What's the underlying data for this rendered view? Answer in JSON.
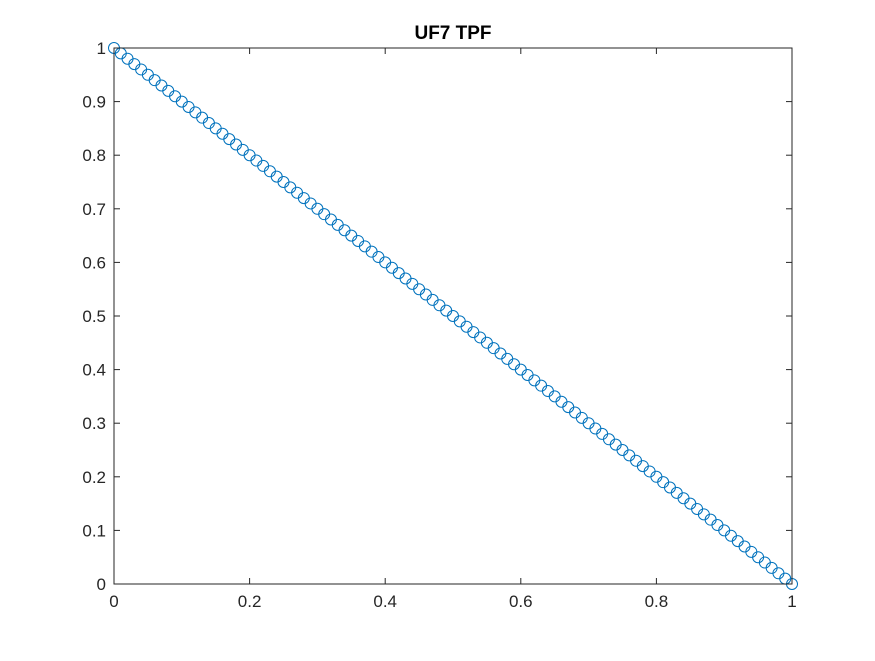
{
  "chart_data": {
    "type": "scatter",
    "title": "UF7 TPF",
    "xlabel": "",
    "ylabel": "",
    "xlim": [
      0,
      1
    ],
    "ylim": [
      0,
      1
    ],
    "xticks": [
      0,
      0.2,
      0.4,
      0.6,
      0.8,
      1
    ],
    "yticks": [
      0,
      0.1,
      0.2,
      0.3,
      0.4,
      0.5,
      0.6,
      0.7,
      0.8,
      0.9,
      1
    ],
    "xtick_labels": [
      "0",
      "0.2",
      "0.4",
      "0.6",
      "0.8",
      "1"
    ],
    "ytick_labels": [
      "0",
      "0.1",
      "0.2",
      "0.3",
      "0.4",
      "0.5",
      "0.6",
      "0.7",
      "0.8",
      "0.9",
      "1"
    ],
    "grid": false,
    "box": true,
    "marker": "open-circle",
    "marker_color": "#0072BD",
    "series": [
      {
        "x": [
          0,
          0.01,
          0.02,
          0.03,
          0.04,
          0.05,
          0.06,
          0.07,
          0.08,
          0.09,
          0.1,
          0.11,
          0.12,
          0.13,
          0.14,
          0.15,
          0.16,
          0.17,
          0.18,
          0.19,
          0.2,
          0.21,
          0.22,
          0.23,
          0.24,
          0.25,
          0.26,
          0.27,
          0.28,
          0.29,
          0.3,
          0.31,
          0.32,
          0.33,
          0.34,
          0.35,
          0.36,
          0.37,
          0.38,
          0.39,
          0.4,
          0.41,
          0.42,
          0.43,
          0.44,
          0.45,
          0.46,
          0.47,
          0.48,
          0.49,
          0.5,
          0.51,
          0.52,
          0.53,
          0.54,
          0.55,
          0.56,
          0.57,
          0.58,
          0.59,
          0.6,
          0.61,
          0.62,
          0.63,
          0.64,
          0.65,
          0.66,
          0.67,
          0.68,
          0.69,
          0.7,
          0.71,
          0.72,
          0.73,
          0.74,
          0.75,
          0.76,
          0.77,
          0.78,
          0.79,
          0.8,
          0.81,
          0.82,
          0.83,
          0.84,
          0.85,
          0.86,
          0.87,
          0.88,
          0.89,
          0.9,
          0.91,
          0.92,
          0.93,
          0.94,
          0.95,
          0.96,
          0.97,
          0.98,
          0.99,
          1
        ],
        "y": [
          1,
          0.99,
          0.98,
          0.97,
          0.96,
          0.95,
          0.94,
          0.93,
          0.92,
          0.91,
          0.9,
          0.89,
          0.88,
          0.87,
          0.86,
          0.85,
          0.84,
          0.83,
          0.82,
          0.81,
          0.8,
          0.79,
          0.78,
          0.77,
          0.76,
          0.75,
          0.74,
          0.73,
          0.72,
          0.71,
          0.7,
          0.69,
          0.68,
          0.67,
          0.66,
          0.65,
          0.64,
          0.63,
          0.62,
          0.61,
          0.6,
          0.59,
          0.58,
          0.57,
          0.56,
          0.55,
          0.54,
          0.53,
          0.52,
          0.51,
          0.5,
          0.49,
          0.48,
          0.47,
          0.46,
          0.45,
          0.44,
          0.43,
          0.42,
          0.41,
          0.4,
          0.39,
          0.38,
          0.37,
          0.36,
          0.35,
          0.34,
          0.33,
          0.32,
          0.31,
          0.3,
          0.29,
          0.28,
          0.27,
          0.26,
          0.25,
          0.24,
          0.23,
          0.22,
          0.21,
          0.2,
          0.19,
          0.18,
          0.17,
          0.16,
          0.15,
          0.14,
          0.13,
          0.12,
          0.11,
          0.1,
          0.09,
          0.08,
          0.07,
          0.06,
          0.05,
          0.04,
          0.03,
          0.02,
          0.01,
          0
        ]
      }
    ]
  }
}
